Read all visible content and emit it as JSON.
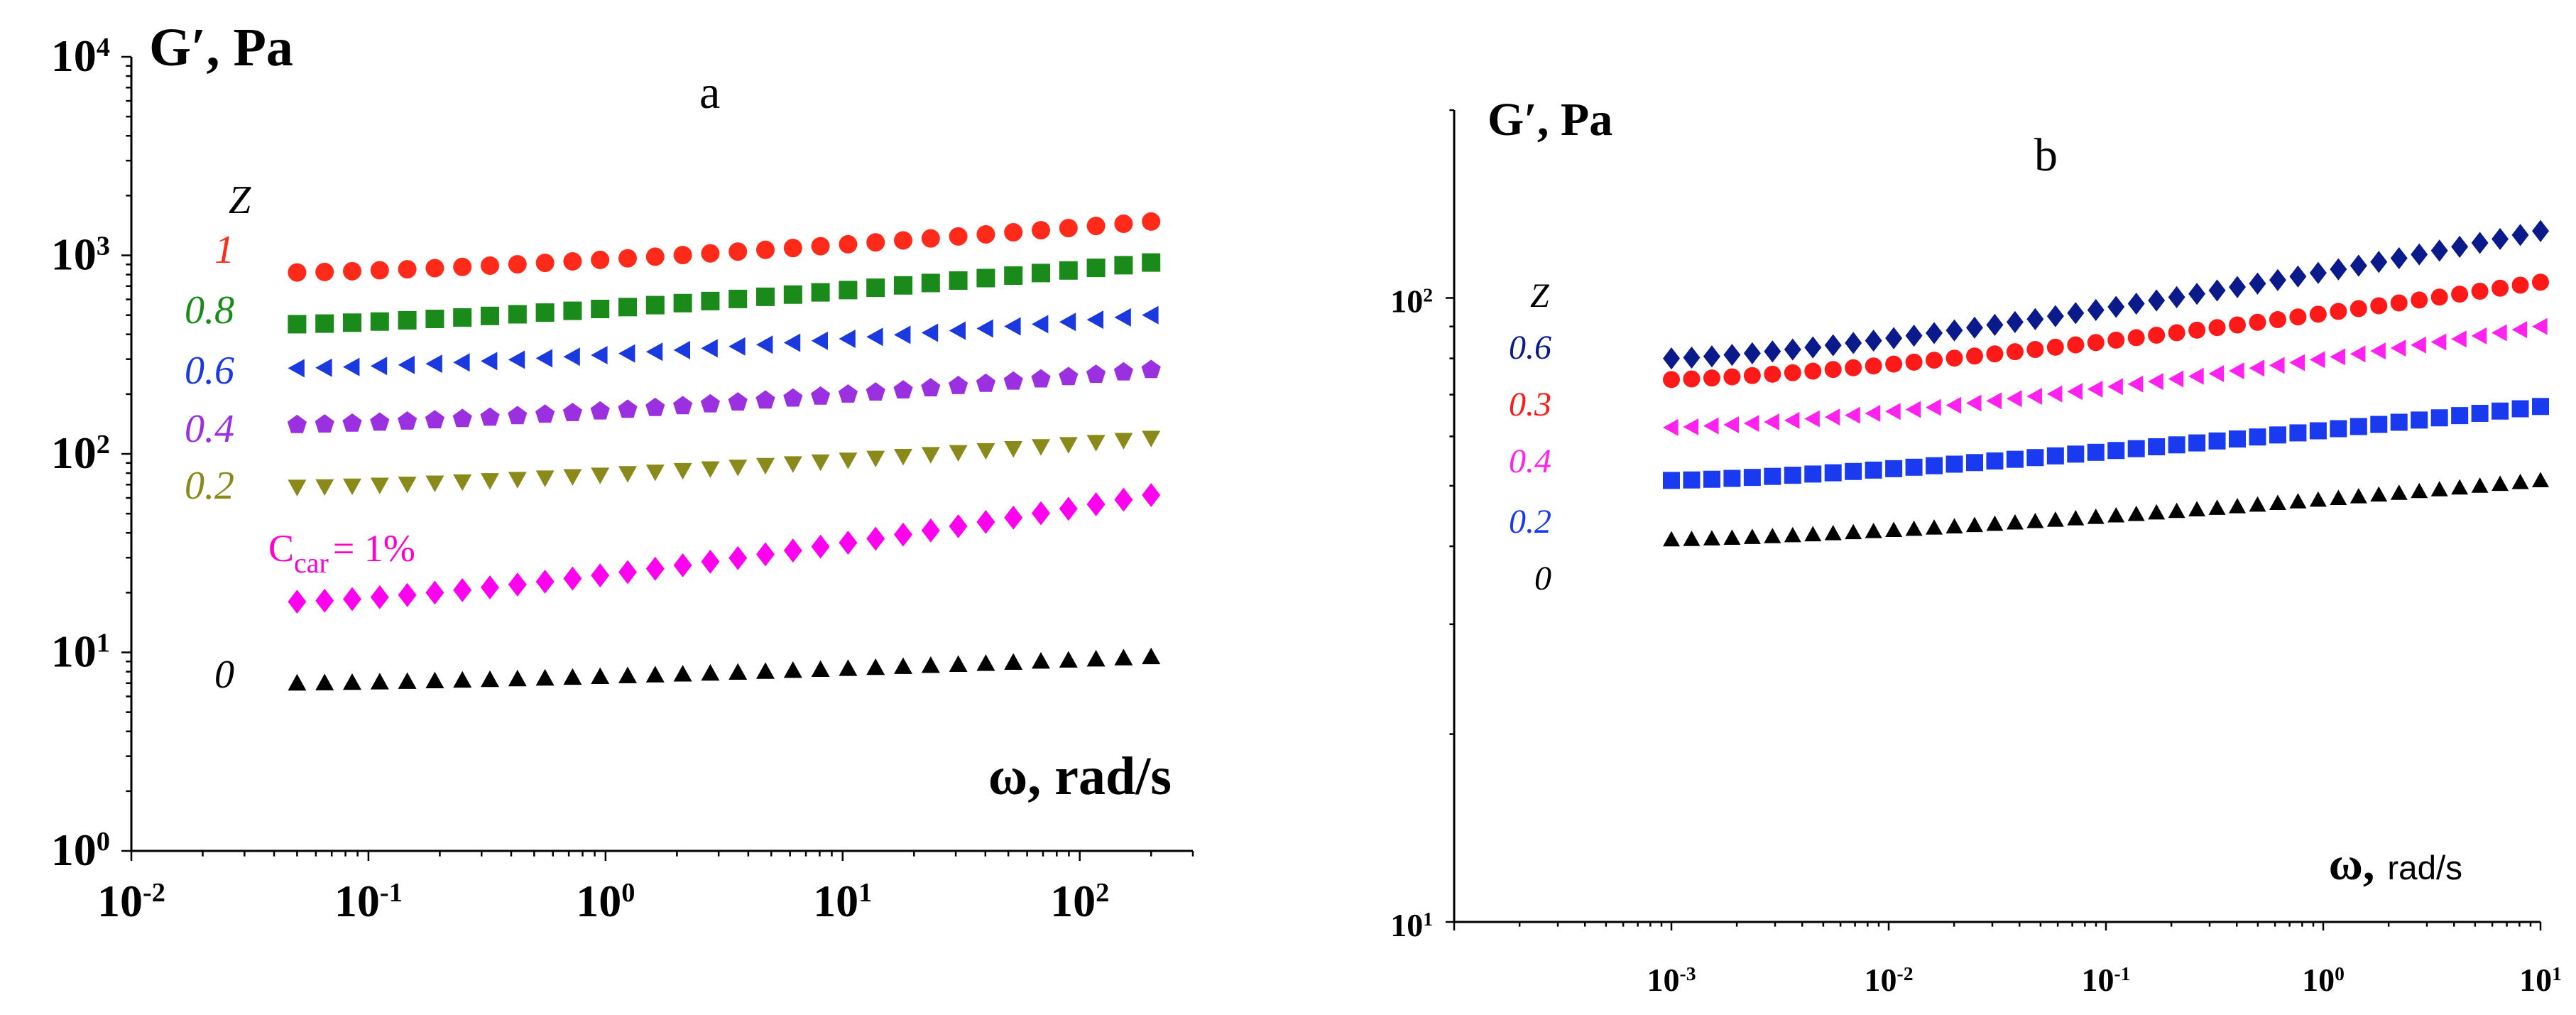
{
  "chart_data": [
    {
      "type": "scatter",
      "panel_label": "a",
      "ylabel": "G′, Pa",
      "xlabel": "ω, rad/s",
      "xscale": "log",
      "yscale": "log",
      "xlim": [
        0.01,
        300
      ],
      "ylim": [
        1,
        10000
      ],
      "xticks": [
        {
          "base": "10",
          "exp": "-2"
        },
        {
          "base": "10",
          "exp": "-1"
        },
        {
          "base": "10",
          "exp": "0"
        },
        {
          "base": "10",
          "exp": "1"
        },
        {
          "base": "10",
          "exp": "2"
        }
      ],
      "yticks": [
        {
          "base": "10",
          "exp": "0"
        },
        {
          "base": "10",
          "exp": "1"
        },
        {
          "base": "10",
          "exp": "2"
        },
        {
          "base": "10",
          "exp": "3"
        },
        {
          "base": "10",
          "exp": "4"
        }
      ],
      "legend_title": "Z",
      "annotation": {
        "main": "C",
        "sub": "car",
        "rest": "= 1%",
        "color": "#ff00cc"
      },
      "series": [
        {
          "label": "1",
          "marker": "circle",
          "color": "#ff2a1a",
          "x_range": [
            0.05,
            200
          ],
          "y_start": 820,
          "y_end": 1480
        },
        {
          "label": "0.8",
          "marker": "square",
          "color": "#1a8a1a",
          "x_range": [
            0.05,
            200
          ],
          "y_start": 450,
          "y_end": 920
        },
        {
          "label": "0.6",
          "marker": "triangle-left",
          "color": "#1a3ae0",
          "x_range": [
            0.05,
            200
          ],
          "y_start": 270,
          "y_end": 500
        },
        {
          "label": "0.4",
          "marker": "pentagon",
          "color": "#9a30e0",
          "x_range": [
            0.05,
            200
          ],
          "y_start": 140,
          "y_end": 265
        },
        {
          "label": "0.2",
          "marker": "triangle-down",
          "color": "#8a8a1a",
          "x_range": [
            0.05,
            200
          ],
          "y_start": 68,
          "y_end": 120
        },
        {
          "label": "",
          "marker": "diamond",
          "color": "#ff00ee",
          "x_range": [
            0.05,
            200
          ],
          "y_start": 18,
          "y_end": 62
        },
        {
          "label": "0",
          "marker": "triangle-up",
          "color": "#000000",
          "x_range": [
            0.05,
            200
          ],
          "y_start": 7,
          "y_end": 9.5
        }
      ]
    },
    {
      "type": "scatter",
      "panel_label": "b",
      "ylabel": "G′, Pa",
      "xlabel": "ω,",
      "xlabel_unit": "rad/s",
      "xscale": "log",
      "yscale": "log",
      "xlim": [
        0.0001,
        10
      ],
      "ylim": [
        10,
        200
      ],
      "xticks": [
        {
          "base": "10",
          "exp": "-3"
        },
        {
          "base": "10",
          "exp": "-2"
        },
        {
          "base": "10",
          "exp": "-1"
        },
        {
          "base": "10",
          "exp": "0"
        },
        {
          "base": "10",
          "exp": "1"
        }
      ],
      "yticks": [
        {
          "base": "10",
          "exp": "1"
        },
        {
          "base": "10",
          "exp": "2"
        }
      ],
      "legend_title": "Z",
      "series": [
        {
          "label": "0.6",
          "marker": "diamond",
          "color": "#0a1a8a",
          "x_range": [
            0.001,
            10
          ],
          "y_start": 80,
          "y_end": 128
        },
        {
          "label": "0.3",
          "marker": "circle",
          "color": "#ff1a1a",
          "x_range": [
            0.001,
            10
          ],
          "y_start": 74,
          "y_end": 106
        },
        {
          "label": "0.4",
          "marker": "triangle-left",
          "color": "#ff22ee",
          "x_range": [
            0.001,
            10
          ],
          "y_start": 62,
          "y_end": 90
        },
        {
          "label": "0.2",
          "marker": "square",
          "color": "#1a3af0",
          "x_range": [
            0.001,
            10
          ],
          "y_start": 51,
          "y_end": 67
        },
        {
          "label": "0",
          "marker": "triangle-up",
          "color": "#000000",
          "x_range": [
            0.001,
            10
          ],
          "y_start": 41,
          "y_end": 51
        }
      ]
    }
  ]
}
